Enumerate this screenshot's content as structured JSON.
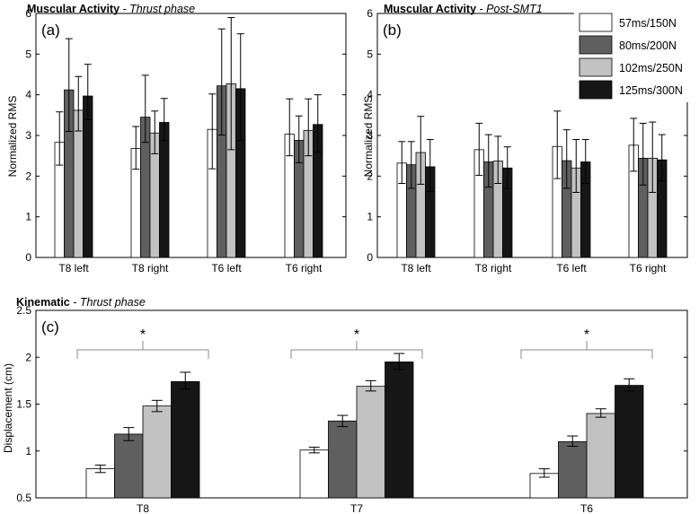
{
  "legend": {
    "entries": [
      "57ms/150N",
      "80ms/200N",
      "102ms/250N",
      "125ms/300N"
    ],
    "colors": [
      "#ffffff",
      "#5f5f5f",
      "#c2c2c2",
      "#161616"
    ]
  },
  "chart_data": [
    {
      "type": "bar",
      "panel_label": "(a)",
      "title_bold": "Muscular Activity",
      "title_italic": " - Thrust phase",
      "xlabel": "",
      "ylabel": "Normalized RMS",
      "ylim": [
        0,
        6
      ],
      "yticks": [
        "0",
        "1",
        "2",
        "3",
        "4",
        "5",
        "6"
      ],
      "categories": [
        "T8 left",
        "T8 right",
        "T6 left",
        "T6 right"
      ],
      "series": [
        {
          "name": "57ms/150N",
          "values": [
            2.83,
            2.68,
            3.15,
            3.03
          ],
          "err_low": [
            2.27,
            2.17,
            2.18,
            2.5
          ],
          "err_high": [
            3.58,
            3.22,
            4.02,
            3.9
          ]
        },
        {
          "name": "80ms/200N",
          "values": [
            4.12,
            3.45,
            4.22,
            2.88
          ],
          "err_low": [
            3.1,
            2.83,
            3.01,
            2.33
          ],
          "err_high": [
            5.38,
            4.48,
            5.62,
            3.48
          ]
        },
        {
          "name": "102ms/250N",
          "values": [
            3.62,
            3.06,
            4.27,
            3.12
          ],
          "err_low": [
            3.11,
            2.55,
            2.65,
            2.5
          ],
          "err_high": [
            4.45,
            3.6,
            5.9,
            3.9
          ]
        },
        {
          "name": "125ms/300N",
          "values": [
            3.97,
            3.32,
            4.15,
            3.27
          ],
          "err_low": [
            3.39,
            2.87,
            2.88,
            2.59
          ],
          "err_high": [
            4.75,
            3.91,
            5.5,
            4.0
          ]
        }
      ]
    },
    {
      "type": "bar",
      "panel_label": "(b)",
      "title_bold": "Muscular Activity",
      "title_italic": " - Post-SMT1",
      "xlabel": "",
      "ylabel": "Normalized RMS",
      "ylim": [
        0,
        6
      ],
      "yticks": [
        "0",
        "1",
        "2",
        "3",
        "4",
        "5",
        "6"
      ],
      "categories": [
        "T8 left",
        "T8 right",
        "T6 left",
        "T6 right"
      ],
      "series": [
        {
          "name": "57ms/150N",
          "values": [
            2.32,
            2.65,
            2.73,
            2.76
          ],
          "err_low": [
            1.82,
            2.02,
            1.94,
            2.12
          ],
          "err_high": [
            2.85,
            3.3,
            3.6,
            3.42
          ]
        },
        {
          "name": "80ms/200N",
          "values": [
            2.28,
            2.35,
            2.38,
            2.44
          ],
          "err_low": [
            1.7,
            1.73,
            1.7,
            1.78
          ],
          "err_high": [
            2.85,
            3.02,
            3.14,
            3.3
          ]
        },
        {
          "name": "102ms/250N",
          "values": [
            2.58,
            2.37,
            2.2,
            2.44
          ],
          "err_low": [
            1.8,
            1.82,
            1.6,
            1.6
          ],
          "err_high": [
            3.47,
            2.98,
            2.9,
            3.33
          ]
        },
        {
          "name": "125ms/300N",
          "values": [
            2.23,
            2.2,
            2.35,
            2.4
          ],
          "err_low": [
            1.62,
            1.7,
            1.82,
            1.88
          ],
          "err_high": [
            2.9,
            2.72,
            2.9,
            3.02
          ]
        }
      ]
    },
    {
      "type": "bar",
      "panel_label": "(c)",
      "title_bold": "Kinematic",
      "title_italic": " - Thrust phase",
      "xlabel": "",
      "ylabel": "Displacement (cm)",
      "ylim": [
        0.5,
        2.5
      ],
      "yticks": [
        "0.5",
        "1",
        "1.5",
        "2",
        "2.5"
      ],
      "categories": [
        "T8",
        "T7",
        "T6"
      ],
      "significance": "*",
      "series": [
        {
          "name": "57ms/150N",
          "values": [
            0.81,
            1.01,
            0.76
          ],
          "err_low": [
            0.77,
            0.98,
            0.72
          ],
          "err_high": [
            0.85,
            1.04,
            0.81
          ]
        },
        {
          "name": "80ms/200N",
          "values": [
            1.18,
            1.32,
            1.1
          ],
          "err_low": [
            1.11,
            1.26,
            1.05
          ],
          "err_high": [
            1.25,
            1.38,
            1.16
          ]
        },
        {
          "name": "102ms/250N",
          "values": [
            1.48,
            1.69,
            1.4
          ],
          "err_low": [
            1.42,
            1.64,
            1.36
          ],
          "err_high": [
            1.54,
            1.75,
            1.45
          ]
        },
        {
          "name": "125ms/300N",
          "values": [
            1.74,
            1.95,
            1.7
          ],
          "err_low": [
            1.66,
            1.87,
            1.64
          ],
          "err_high": [
            1.84,
            2.04,
            1.77
          ]
        }
      ]
    }
  ]
}
